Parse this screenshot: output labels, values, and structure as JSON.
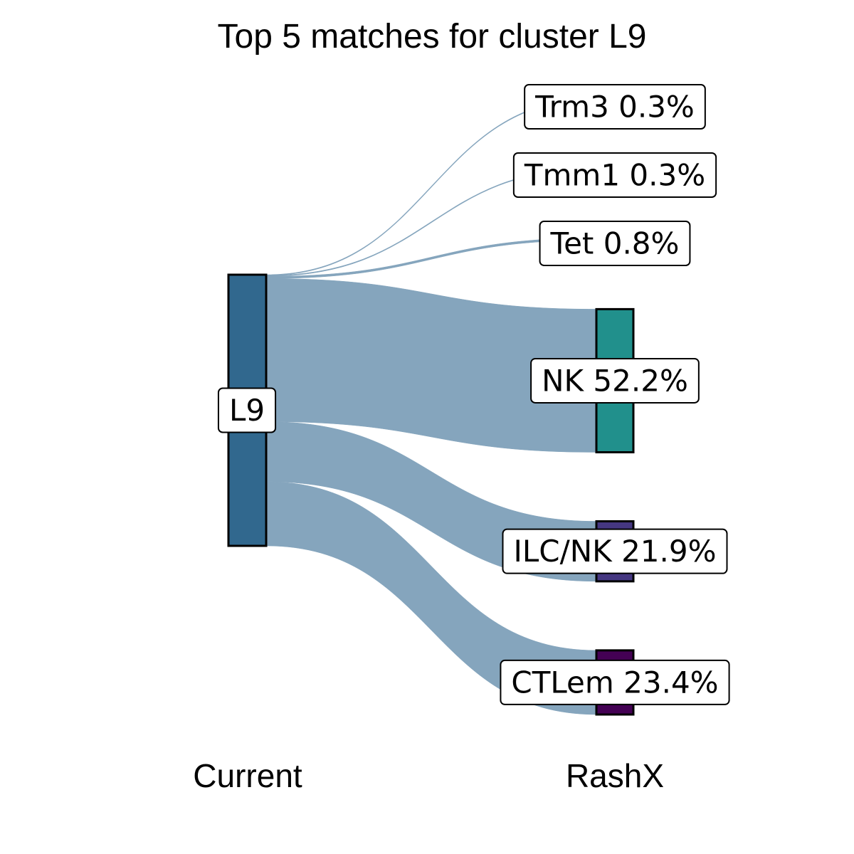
{
  "chart_data": {
    "type": "sankey",
    "title": "Top 5 matches for cluster L9",
    "axes": [
      "Current",
      "RashX"
    ],
    "source": {
      "name": "L9",
      "color": "#31688e"
    },
    "link_color": "#85a5bd",
    "targets": [
      {
        "name": "Trm3",
        "percent": 0.3,
        "label": "Trm3 0.3%"
      },
      {
        "name": "Tmm1",
        "percent": 0.3,
        "label": "Tmm1 0.3%"
      },
      {
        "name": "Tet",
        "percent": 0.8,
        "label": "Tet 0.8%"
      },
      {
        "name": "NK",
        "percent": 52.2,
        "label": "NK 52.2%",
        "color": "#21908c"
      },
      {
        "name": "ILC/NK",
        "percent": 21.9,
        "label": "ILC/NK 21.9%",
        "color": "#453781"
      },
      {
        "name": "CTLem",
        "percent": 23.4,
        "label": "CTLem 23.4%",
        "color": "#440154"
      }
    ]
  }
}
